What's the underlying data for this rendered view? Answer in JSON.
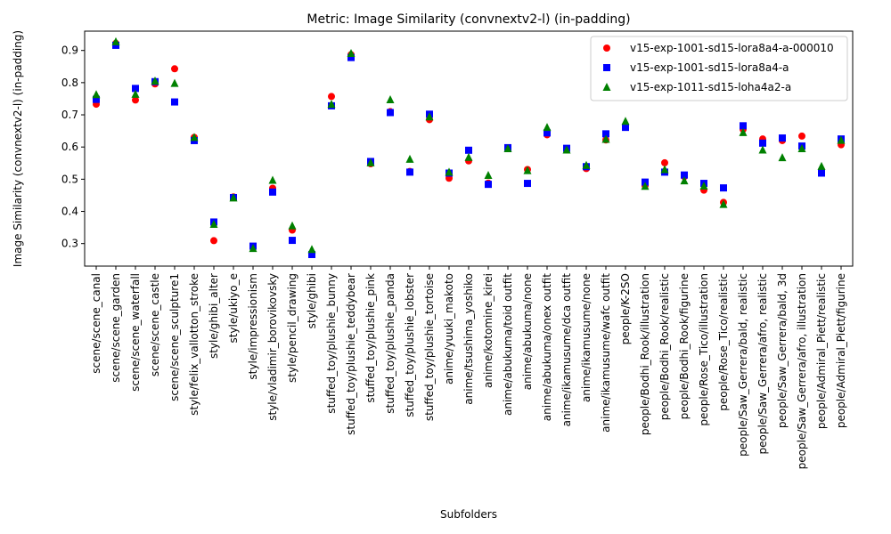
{
  "chart_data": {
    "type": "scatter",
    "title": "Metric: Image Similarity (convnextv2-l) (in-padding)",
    "xlabel": "Subfolders",
    "ylabel": "Image Similarity (convnextv2-l) (in-padding)",
    "ylim": [
      0.23,
      0.96
    ],
    "yticks": [
      0.3,
      0.4,
      0.5,
      0.6,
      0.7,
      0.8,
      0.9
    ],
    "grid": false,
    "legend_position": "top-right",
    "categories": [
      "scene/scene_canal",
      "scene/scene_garden",
      "scene/scene_waterfall",
      "scene/scene_castle",
      "scene/scene_sculpture1",
      "style/felix_vallotton_stroke",
      "style/ghibi_alter",
      "style/ukiyo_e",
      "style/impressionism",
      "style/vladimir_borovikovsky",
      "style/pencil_drawing",
      "style/ghibi",
      "stuffed_toy/plushie_bunny",
      "stuffed_toy/plushie_teddybear",
      "stuffed_toy/plushie_pink",
      "stuffed_toy/plushie_panda",
      "stuffed_toy/plushie_lobster",
      "stuffed_toy/plushie_tortoise",
      "anime/yuuki_makoto",
      "anime/tsushima_yoshiko",
      "anime/kotomine_kirei",
      "anime/abukuma/toid outfit",
      "anime/abukuma/none",
      "anime/abukuma/onex outfit",
      "anime/ikamusume/dca outfit",
      "anime/ikamusume/none",
      "anime/ikamusume/wafc outfit",
      "people/K-2SO",
      "people/Bodhi_Rook/illustration",
      "people/Bodhi_Rook/realistic",
      "people/Bodhi_Rook/figurine",
      "people/Rose_Tico/illustration",
      "people/Rose_Tico/realistic",
      "people/Saw_Gerrera/bald, realistic",
      "people/Saw_Gerrera/afro, realistic",
      "people/Saw_Gerrera/bald, 3d",
      "people/Saw_Gerrera/afro, illustration",
      "people/Admiral_Piett/realistic",
      "people/Admiral_Piett/figurine"
    ],
    "series": [
      {
        "name": "v15-exp-1001-sd15-lora8a4-a-000010",
        "color": "#ff0000",
        "marker": "circle",
        "values": [
          0.733,
          0.922,
          0.746,
          0.796,
          0.843,
          0.63,
          0.309,
          0.445,
          0.29,
          0.472,
          0.342,
          0.27,
          0.757,
          0.887,
          0.548,
          0.71,
          0.524,
          0.685,
          0.503,
          0.557,
          0.488,
          0.596,
          0.53,
          0.638,
          0.592,
          0.533,
          0.622,
          0.663,
          0.48,
          0.551,
          0.508,
          0.466,
          0.428,
          0.655,
          0.625,
          0.62,
          0.634,
          0.528,
          0.607
        ]
      },
      {
        "name": "v15-exp-1001-sd15-lora8a4-a",
        "color": "#0000ff",
        "marker": "square",
        "values": [
          0.748,
          0.916,
          0.782,
          0.803,
          0.74,
          0.62,
          0.367,
          0.443,
          0.292,
          0.46,
          0.31,
          0.266,
          0.728,
          0.878,
          0.555,
          0.707,
          0.522,
          0.702,
          0.519,
          0.59,
          0.484,
          0.598,
          0.487,
          0.644,
          0.596,
          0.539,
          0.641,
          0.661,
          0.491,
          0.522,
          0.513,
          0.487,
          0.473,
          0.666,
          0.612,
          0.628,
          0.603,
          0.519,
          0.625
        ]
      },
      {
        "name": "v15-exp-1011-sd15-loha4a2-a",
        "color": "#008000",
        "marker": "triangle",
        "values": [
          0.763,
          0.927,
          0.764,
          0.805,
          0.798,
          0.63,
          0.36,
          0.442,
          0.285,
          0.497,
          0.355,
          0.282,
          0.733,
          0.891,
          0.551,
          0.747,
          0.562,
          0.694,
          0.522,
          0.568,
          0.512,
          0.595,
          0.527,
          0.661,
          0.591,
          0.543,
          0.624,
          0.68,
          0.478,
          0.53,
          0.495,
          0.479,
          0.422,
          0.645,
          0.591,
          0.567,
          0.595,
          0.54,
          0.621
        ]
      }
    ]
  }
}
